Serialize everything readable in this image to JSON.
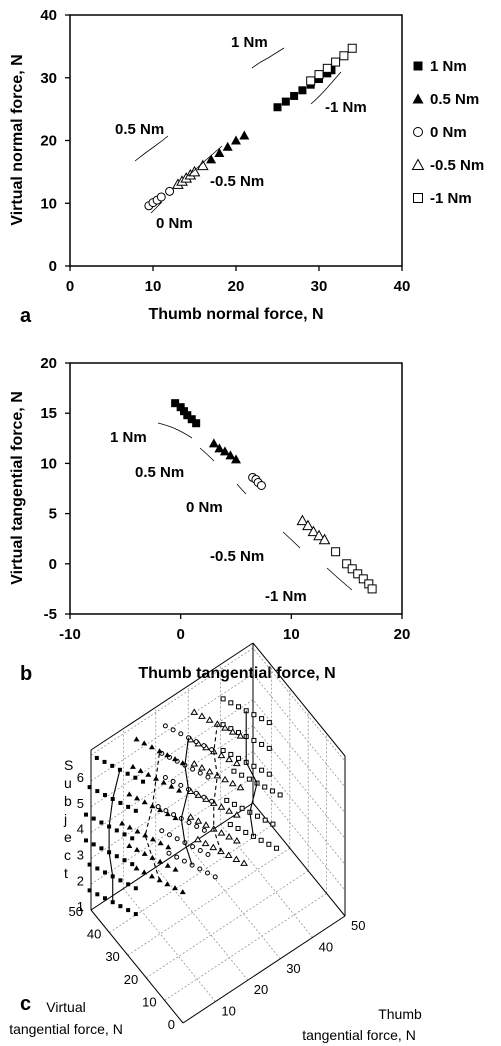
{
  "chart_data": [
    {
      "panel": "a",
      "type": "scatter",
      "xlabel": "Thumb normal force, N",
      "ylabel": "Virtual normal force, N",
      "xlim": [
        0,
        40
      ],
      "ylim": [
        0,
        40
      ],
      "xticks": [
        "0",
        "10",
        "20",
        "30",
        "40"
      ],
      "yticks": [
        "0",
        "10",
        "20",
        "30",
        "40"
      ],
      "legend": {
        "placement": "right",
        "entries": [
          "1 Nm",
          "0.5 Nm",
          "0 Nm",
          "-0.5 Nm",
          "-1 Nm"
        ]
      },
      "annotations": [
        "1 Nm",
        "-1 Nm",
        "0.5 Nm",
        "-0.5 Nm",
        "0 Nm"
      ],
      "series": [
        {
          "name": "1 Nm",
          "marker": "filled-square",
          "x": [
            25,
            26,
            27,
            28,
            29,
            30,
            31,
            31.5
          ],
          "y": [
            25.3,
            26.2,
            27.1,
            28.0,
            28.9,
            29.8,
            30.7,
            31.2
          ]
        },
        {
          "name": "0.5 Nm",
          "marker": "filled-triangle",
          "x": [
            14,
            15,
            16,
            17,
            18,
            19,
            20,
            21
          ],
          "y": [
            14.0,
            15.0,
            16.0,
            17.0,
            18.0,
            19.0,
            20.0,
            20.8
          ]
        },
        {
          "name": "0 Nm",
          "marker": "open-circle",
          "x": [
            9.5,
            10,
            10.5,
            11,
            12
          ],
          "y": [
            9.6,
            10.1,
            10.5,
            11.0,
            11.9
          ]
        },
        {
          "name": "-0.5 Nm",
          "marker": "open-triangle",
          "x": [
            13,
            13.5,
            14,
            14.5,
            15,
            16
          ],
          "y": [
            13.0,
            13.5,
            14.0,
            14.5,
            15.0,
            16.0
          ]
        },
        {
          "name": "-1 Nm",
          "marker": "open-square",
          "x": [
            29,
            30,
            31,
            32,
            33,
            34
          ],
          "y": [
            29.5,
            30.5,
            31.5,
            32.5,
            33.5,
            34.7
          ]
        }
      ]
    },
    {
      "panel": "b",
      "type": "scatter",
      "xlabel": "Thumb tangential force, N",
      "ylabel": "Virtual tangential force, N",
      "xlim": [
        -10,
        20
      ],
      "ylim": [
        -5,
        20
      ],
      "xticks": [
        "-10",
        "0",
        "10",
        "20"
      ],
      "yticks": [
        "-5",
        "0",
        "5",
        "10",
        "15",
        "20"
      ],
      "annotations": [
        "1 Nm",
        "0.5 Nm",
        "0 Nm",
        "-0.5 Nm",
        "-1 Nm"
      ],
      "series": [
        {
          "name": "1 Nm",
          "marker": "filled-square",
          "x": [
            -0.5,
            0,
            0.3,
            0.6,
            1.0,
            1.4
          ],
          "y": [
            16.0,
            15.6,
            15.2,
            14.8,
            14.4,
            14.0
          ]
        },
        {
          "name": "0.5 Nm",
          "marker": "filled-triangle",
          "x": [
            3.0,
            3.5,
            4.0,
            4.5,
            5.0
          ],
          "y": [
            12.0,
            11.5,
            11.2,
            10.8,
            10.4
          ]
        },
        {
          "name": "0 Nm",
          "marker": "open-circle",
          "x": [
            6.5,
            6.8,
            7.0,
            7.3
          ],
          "y": [
            8.6,
            8.4,
            8.1,
            7.8
          ]
        },
        {
          "name": "-0.5 Nm",
          "marker": "open-triangle",
          "x": [
            11.0,
            11.5,
            12.0,
            12.5,
            13.0
          ],
          "y": [
            4.3,
            3.8,
            3.2,
            2.8,
            2.4
          ]
        },
        {
          "name": "-1 Nm",
          "marker": "open-square",
          "x": [
            14.0,
            15.0,
            15.5,
            16.0,
            16.5,
            17.0,
            17.3
          ],
          "y": [
            1.2,
            0.0,
            -0.5,
            -1.0,
            -1.5,
            -2.0,
            -2.5
          ]
        }
      ]
    },
    {
      "panel": "c",
      "type": "scatter",
      "xlabel": "Thumb tangential force, N",
      "ylabel": "Virtual tangential force, N",
      "zlabel": "Subject",
      "xticks": [
        "10",
        "20",
        "30",
        "40",
        "50"
      ],
      "yticks": [
        "0",
        "10",
        "20",
        "30",
        "40",
        "50"
      ],
      "zticks": [
        "1",
        "2",
        "3",
        "4",
        "5",
        "6"
      ],
      "rows": [
        {
          "z": 1,
          "clusters": [
            5,
            18,
            27,
            35,
            44
          ]
        },
        {
          "z": 2,
          "clusters": [
            5,
            16,
            25,
            33,
            43
          ]
        },
        {
          "z": 3,
          "clusters": [
            4,
            14,
            24,
            33,
            45
          ]
        },
        {
          "z": 4,
          "clusters": [
            4,
            16,
            26,
            34,
            42
          ]
        },
        {
          "z": 5,
          "clusters": [
            5,
            17,
            25,
            33,
            42
          ]
        },
        {
          "z": 6,
          "clusters": [
            7,
            18,
            26,
            34,
            42
          ]
        }
      ]
    }
  ],
  "panel_labels": {
    "a": "a",
    "b": "b",
    "c": "c"
  },
  "panel_c_labels": {
    "z_title": "Subject",
    "left_title_1": "Virtual",
    "left_title_2": "tangential force, N",
    "right_title_1": "Thumb",
    "right_title_2": "tangential force, N"
  }
}
